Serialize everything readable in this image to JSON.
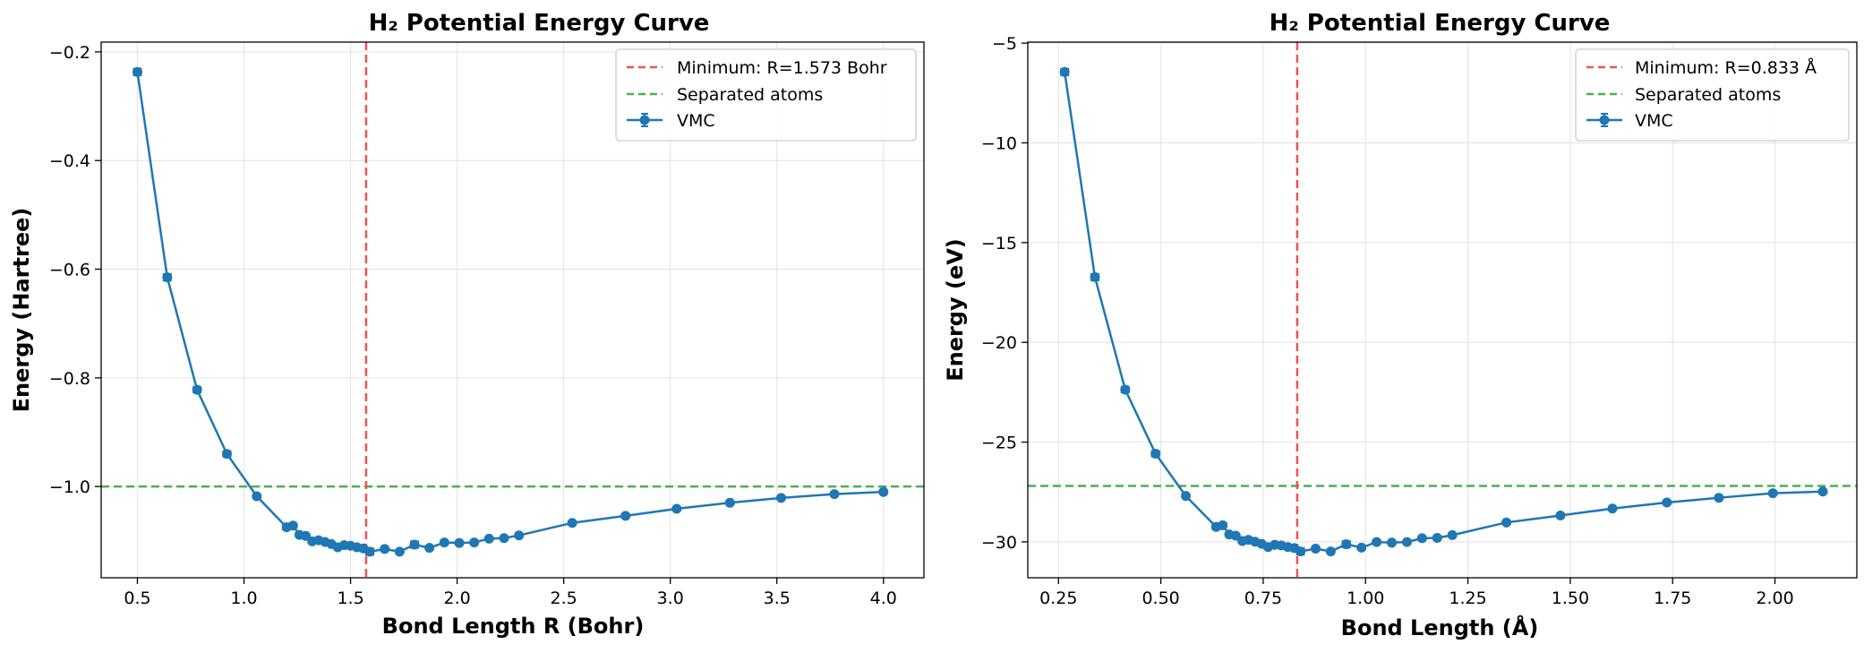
{
  "chart_data": [
    {
      "type": "line",
      "title": "H₂ Potential Energy Curve",
      "xlabel": "Bond Length R (Bohr)",
      "ylabel": "Energy (Hartree)",
      "xlim": [
        0.33,
        4.19
      ],
      "ylim": [
        -1.168,
        -0.182
      ],
      "xticks": [
        0.5,
        1.0,
        1.5,
        2.0,
        2.5,
        3.0,
        3.5,
        4.0
      ],
      "xtick_labels": [
        "0.5",
        "1.0",
        "1.5",
        "2.0",
        "2.5",
        "3.0",
        "3.5",
        "4.0"
      ],
      "yticks": [
        -1.0,
        -0.8,
        -0.6,
        -0.4,
        -0.2
      ],
      "ytick_labels": [
        "−1.0",
        "−0.8",
        "−0.6",
        "−0.4",
        "−0.2"
      ],
      "grid": true,
      "legend_position": "top-right",
      "vline": {
        "x": 1.573,
        "label": "Minimum: R=1.573 Bohr",
        "color": "#ef5350"
      },
      "hline": {
        "y": -1.0,
        "label": "Separated atoms",
        "color": "#4caf50"
      },
      "series": [
        {
          "name": "VMC",
          "color": "#1f77b4",
          "error_bars": true,
          "x": [
            0.5,
            0.64,
            0.78,
            0.92,
            1.06,
            1.2,
            1.23,
            1.26,
            1.29,
            1.32,
            1.35,
            1.38,
            1.41,
            1.44,
            1.47,
            1.5,
            1.53,
            1.56,
            1.59,
            1.66,
            1.73,
            1.8,
            1.87,
            1.94,
            2.01,
            2.08,
            2.15,
            2.22,
            2.29,
            2.54,
            2.79,
            3.03,
            3.28,
            3.52,
            3.77,
            4.0
          ],
          "y": [
            -0.237,
            -0.615,
            -0.822,
            -0.94,
            -1.018,
            -1.075,
            -1.072,
            -1.089,
            -1.091,
            -1.101,
            -1.099,
            -1.102,
            -1.106,
            -1.112,
            -1.108,
            -1.109,
            -1.112,
            -1.114,
            -1.12,
            -1.115,
            -1.12,
            -1.107,
            -1.113,
            -1.103,
            -1.104,
            -1.103,
            -1.096,
            -1.095,
            -1.09,
            -1.067,
            -1.054,
            -1.041,
            -1.03,
            -1.021,
            -1.014,
            -1.01
          ],
          "err": [
            0.006,
            0.006,
            0.005,
            0.005,
            0.003,
            0.004,
            0.004,
            0.003,
            0.003,
            0.003,
            0.003,
            0.003,
            0.003,
            0.003,
            0.003,
            0.003,
            0.003,
            0.003,
            0.006,
            0.003,
            0.003,
            0.006,
            0.003,
            0.003,
            0.003,
            0.003,
            0.003,
            0.003,
            0.003,
            0.003,
            0.003,
            0.003,
            0.003,
            0.003,
            0.003,
            0.003
          ]
        }
      ]
    },
    {
      "type": "line",
      "title": "H₂ Potential Energy Curve",
      "xlabel": "Bond Length (Å)",
      "ylabel": "Energy (eV)",
      "xlim": [
        0.175,
        2.2
      ],
      "ylim": [
        -31.8,
        -4.95
      ],
      "xticks": [
        0.25,
        0.5,
        0.75,
        1.0,
        1.25,
        1.5,
        1.75,
        2.0
      ],
      "xtick_labels": [
        "0.25",
        "0.50",
        "0.75",
        "1.00",
        "1.25",
        "1.50",
        "1.75",
        "2.00"
      ],
      "yticks": [
        -30,
        -25,
        -20,
        -15,
        -10,
        -5
      ],
      "ytick_labels": [
        "−30",
        "−25",
        "−20",
        "−15",
        "−10",
        "−5"
      ],
      "grid": true,
      "legend_position": "top-right",
      "vline": {
        "x": 0.833,
        "label": "Minimum: R=0.833 Å",
        "color": "#ef5350"
      },
      "hline": {
        "y": -27.2,
        "label": "Separated atoms",
        "color": "#4caf50"
      },
      "series": [
        {
          "name": "VMC",
          "color": "#1f77b4",
          "error_bars": true,
          "x": [
            0.265,
            0.339,
            0.413,
            0.487,
            0.561,
            0.635,
            0.651,
            0.667,
            0.683,
            0.699,
            0.714,
            0.73,
            0.746,
            0.762,
            0.778,
            0.794,
            0.81,
            0.826,
            0.841,
            0.878,
            0.915,
            0.953,
            0.99,
            1.027,
            1.064,
            1.101,
            1.138,
            1.175,
            1.212,
            1.344,
            1.476,
            1.603,
            1.736,
            1.863,
            1.995,
            2.117
          ],
          "y": [
            -6.45,
            -16.73,
            -22.37,
            -25.58,
            -27.7,
            -29.25,
            -29.17,
            -29.63,
            -29.69,
            -29.96,
            -29.9,
            -29.99,
            -30.1,
            -30.26,
            -30.15,
            -30.18,
            -30.26,
            -30.31,
            -30.48,
            -30.34,
            -30.48,
            -30.12,
            -30.29,
            -30.01,
            -30.04,
            -30.01,
            -29.82,
            -29.8,
            -29.66,
            -29.03,
            -28.68,
            -28.33,
            -28.03,
            -27.79,
            -27.56,
            -27.48
          ],
          "err": [
            0.16,
            0.16,
            0.14,
            0.14,
            0.08,
            0.11,
            0.11,
            0.08,
            0.08,
            0.08,
            0.08,
            0.08,
            0.08,
            0.08,
            0.08,
            0.08,
            0.08,
            0.08,
            0.16,
            0.08,
            0.08,
            0.16,
            0.08,
            0.08,
            0.08,
            0.08,
            0.08,
            0.08,
            0.08,
            0.08,
            0.08,
            0.08,
            0.08,
            0.08,
            0.08,
            0.08
          ]
        }
      ]
    }
  ]
}
